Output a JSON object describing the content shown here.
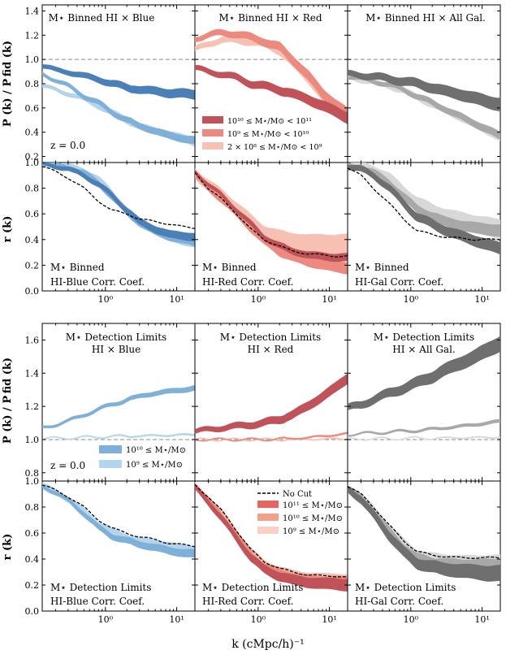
{
  "figure": {
    "xlabel": "k (cMpc/h)⁻¹",
    "ylabel_power": "P (k) / P fid (k)",
    "ylabel_corr": "r (k)",
    "xticks": [
      "10⁰",
      "10¹"
    ]
  },
  "colors": {
    "blue_dark": "#4a7fb8",
    "blue_mid": "#7eb0d8",
    "blue_light": "#b5d3ea",
    "red_dark": "#c0535a",
    "red_mid": "#ec8a7f",
    "red_light": "#f6c1b2",
    "gray_dark": "#6f6f6f",
    "gray_mid": "#a8a8a8",
    "gray_light": "#d8d8d8",
    "nocut": "#000000",
    "hline": "#888888"
  },
  "panels": {
    "r0c0": {
      "title": "M⋆ Binned HI × Blue",
      "note": "z = 0.0"
    },
    "r0c1": {
      "title": "M⋆ Binned HI × Red"
    },
    "r0c2": {
      "title": "M⋆ Binned HI × All Gal."
    },
    "r1c0": {
      "cap1": "M⋆ Binned",
      "cap2": "HI-Blue Corr. Coef."
    },
    "r1c1": {
      "cap1": "M⋆ Binned",
      "cap2": "HI-Red Corr. Coef."
    },
    "r1c2": {
      "cap1": "M⋆ Binned",
      "cap2": "HI-Gal Corr. Coef."
    },
    "r2c0": {
      "title1": "M⋆ Detection Limits",
      "title2": "HI × Blue",
      "note": "z = 0.0"
    },
    "r2c1": {
      "title1": "M⋆ Detection Limits",
      "title2": "HI × Red"
    },
    "r2c2": {
      "title1": "M⋆ Detection Limits",
      "title2": "HI × All Gal."
    },
    "r3c0": {
      "cap1": "M⋆ Detection Limits",
      "cap2": "HI-Blue Corr. Coef."
    },
    "r3c1": {
      "cap1": "M⋆ Detection Limits",
      "cap2": "HI-Red Corr. Coef."
    },
    "r3c2": {
      "cap1": "M⋆ Detection Limits",
      "cap2": "HI-Gal Corr. Coef."
    }
  },
  "legends": {
    "binned_red": [
      "10¹⁰ ≤ M⋆/M⊙ < 10¹¹",
      "10⁹ ≤ M⋆/M⊙ < 10¹⁰",
      "2 × 10⁸ ≤ M⋆/M⊙ < 10⁹"
    ],
    "det_blue": [
      "10¹⁰ ≤ M⋆/M⊙",
      "10⁹ ≤ M⋆/M⊙"
    ],
    "det_red": [
      "No Cut",
      "10¹¹ ≤ M⋆/M⊙",
      "10¹⁰ ≤ M⋆/M⊙",
      "10⁹ ≤ M⋆/M⊙"
    ]
  },
  "chart_data": [
    {
      "type": "line",
      "title": "M⋆ Binned (top block, rows: P(k)/P_fid(k) and r(k); columns: HI × Blue, HI × Red, HI × All Gal.)",
      "x_scale": "log",
      "xlim": [
        0.13,
        18
      ],
      "ylim_power": [
        0.15,
        1.45
      ],
      "yticks_power": [
        0.2,
        0.4,
        0.6,
        0.8,
        1.0,
        1.2,
        1.4
      ],
      "ylim_corr": [
        0.0,
        1.0
      ],
      "yticks_corr": [
        0.0,
        0.2,
        0.4,
        0.6,
        0.8,
        1.0
      ],
      "x": [
        0.13,
        0.2,
        0.3,
        0.5,
        0.8,
        1.2,
        2,
        3,
        5,
        8,
        12,
        18
      ],
      "power": {
        "blue": [
          {
            "name": "10¹⁰ ≤ M⋆/M⊙ < 10¹¹",
            "shade": "dark",
            "values": [
              0.95,
              0.91,
              0.9,
              0.86,
              0.84,
              0.8,
              0.77,
              0.75,
              0.74,
              0.72,
              0.72,
              0.71
            ],
            "band": 0.025
          },
          {
            "name": "10⁹ ≤ M⋆/M⊙ < 10¹⁰",
            "shade": "mid",
            "values": [
              0.88,
              0.83,
              0.78,
              0.7,
              0.64,
              0.57,
              0.5,
              0.45,
              0.41,
              0.37,
              0.35,
              0.33
            ],
            "band": 0.02
          },
          {
            "name": "2 × 10⁸ ≤ M⋆/M⊙ < 10⁹",
            "shade": "light",
            "values": [
              0.78,
              0.75,
              0.72,
              0.67,
              0.62,
              0.56,
              0.5,
              0.45,
              0.41,
              0.38,
              0.35,
              0.32
            ],
            "band": 0.02
          }
        ],
        "red": [
          {
            "name": "10¹⁰ ≤ M⋆/M⊙ < 10¹¹",
            "shade": "dark",
            "values": [
              0.93,
              0.9,
              0.88,
              0.85,
              0.8,
              0.78,
              0.75,
              0.72,
              0.67,
              0.62,
              0.57,
              0.52
            ],
            "band": 0.03
          },
          {
            "name": "10⁹ ≤ M⋆/M⊙ < 10¹⁰",
            "shade": "mid",
            "values": [
              1.17,
              1.2,
              1.22,
              1.21,
              1.18,
              1.15,
              1.1,
              1.0,
              0.87,
              0.72,
              0.63,
              0.55
            ],
            "band": 0.03
          },
          {
            "name": "2 × 10⁸ ≤ M⋆/M⊙ < 10⁹",
            "shade": "light",
            "values": [
              1.08,
              1.13,
              1.16,
              1.16,
              1.15,
              1.13,
              1.08,
              0.98,
              0.85,
              0.7,
              0.62,
              0.55
            ],
            "band": 0.03
          }
        ],
        "all": [
          {
            "name": "10¹⁰ ≤ M⋆/M⊙ < 10¹¹",
            "shade": "dark",
            "values": [
              0.88,
              0.87,
              0.86,
              0.84,
              0.82,
              0.8,
              0.77,
              0.74,
              0.71,
              0.68,
              0.65,
              0.63
            ],
            "band": 0.035
          },
          {
            "name": "10⁹ ≤ M⋆/M⊙ < 10¹⁰",
            "shade": "mid",
            "values": [
              0.86,
              0.84,
              0.82,
              0.79,
              0.75,
              0.7,
              0.64,
              0.59,
              0.53,
              0.47,
              0.42,
              0.37
            ],
            "band": 0.02
          },
          {
            "name": "2 × 10⁸ ≤ M⋆/M⊙ < 10⁹",
            "shade": "light",
            "values": [
              0.85,
              0.83,
              0.81,
              0.78,
              0.74,
              0.69,
              0.63,
              0.58,
              0.52,
              0.46,
              0.41,
              0.36
            ],
            "band": 0.02
          }
        ]
      },
      "corr": {
        "blue": {
          "nocut": [
            0.97,
            0.93,
            0.88,
            0.8,
            0.7,
            0.63,
            0.6,
            0.56,
            0.54,
            0.52,
            0.5,
            0.49
          ],
          "series": [
            {
              "shade": "dark",
              "values": [
                0.99,
                0.97,
                0.95,
                0.9,
                0.83,
                0.75,
                0.63,
                0.54,
                0.48,
                0.44,
                0.43,
                0.42
              ],
              "band": 0.02
            },
            {
              "shade": "mid",
              "values": [
                0.99,
                0.98,
                0.96,
                0.92,
                0.84,
                0.74,
                0.61,
                0.53,
                0.46,
                0.42,
                0.4,
                0.38
              ],
              "band": 0.02
            },
            {
              "shade": "light",
              "values": [
                0.99,
                0.98,
                0.97,
                0.94,
                0.87,
                0.77,
                0.63,
                0.54,
                0.47,
                0.42,
                0.39,
                0.37
              ],
              "band": 0.02
            }
          ]
        },
        "red": {
          "nocut": [
            0.92,
            0.8,
            0.72,
            0.6,
            0.48,
            0.4,
            0.35,
            0.31,
            0.29,
            0.28,
            0.27,
            0.27
          ],
          "series": [
            {
              "shade": "dark",
              "values": [
                0.93,
                0.83,
                0.75,
                0.63,
                0.52,
                0.42,
                0.35,
                0.31,
                0.28,
                0.27,
                0.26,
                0.26
              ],
              "band": 0.02
            },
            {
              "shade": "mid",
              "values": [
                0.9,
                0.8,
                0.72,
                0.6,
                0.49,
                0.39,
                0.31,
                0.27,
                0.23,
                0.21,
                0.19,
                0.18
              ],
              "band": 0.03
            },
            {
              "shade": "light",
              "values": [
                0.92,
                0.82,
                0.75,
                0.64,
                0.53,
                0.45,
                0.4,
                0.38,
                0.36,
                0.36,
                0.35,
                0.35
              ],
              "band": 0.06
            }
          ]
        },
        "all": {
          "nocut": [
            0.96,
            0.9,
            0.8,
            0.68,
            0.56,
            0.47,
            0.44,
            0.42,
            0.41,
            0.4,
            0.4,
            0.4
          ],
          "series": [
            {
              "shade": "dark",
              "values": [
                0.97,
                0.95,
                0.9,
                0.8,
                0.68,
                0.58,
                0.52,
                0.47,
                0.43,
                0.39,
                0.36,
                0.33
              ],
              "band": 0.03
            },
            {
              "shade": "mid",
              "values": [
                0.97,
                0.96,
                0.92,
                0.84,
                0.73,
                0.64,
                0.58,
                0.54,
                0.51,
                0.49,
                0.48,
                0.47
              ],
              "band": 0.03
            },
            {
              "shade": "light",
              "values": [
                0.98,
                0.97,
                0.94,
                0.87,
                0.77,
                0.68,
                0.62,
                0.58,
                0.55,
                0.52,
                0.5,
                0.48
              ],
              "band": 0.05
            }
          ]
        }
      }
    },
    {
      "type": "line",
      "title": "M⋆ Detection Limits (bottom block, rows: P(k)/P_fid(k) and r(k); columns: HI × Blue, HI × Red, HI × All Gal.)",
      "x_scale": "log",
      "xlim": [
        0.13,
        18
      ],
      "ylim_power": [
        0.75,
        1.7
      ],
      "yticks_power": [
        0.8,
        1.0,
        1.2,
        1.4,
        1.6
      ],
      "ylim_corr": [
        0.0,
        1.0
      ],
      "yticks_corr": [
        0.0,
        0.2,
        0.4,
        0.6,
        0.8,
        1.0
      ],
      "x": [
        0.13,
        0.2,
        0.3,
        0.5,
        0.8,
        1.2,
        2,
        3,
        5,
        8,
        12,
        18
      ],
      "power": {
        "blue": [
          {
            "name": "10¹⁰ ≤ M⋆/M⊙",
            "shade": "mid",
            "values": [
              1.07,
              1.09,
              1.11,
              1.15,
              1.18,
              1.21,
              1.24,
              1.26,
              1.28,
              1.29,
              1.3,
              1.31
            ],
            "band": 0.01
          },
          {
            "name": "10⁹ ≤ M⋆/M⊙",
            "shade": "light",
            "values": [
              1.005,
              1.008,
              1.01,
              1.013,
              1.016,
              1.018,
              1.02,
              1.022,
              1.024,
              1.026,
              1.028,
              1.03
            ],
            "band": 0.003
          }
        ],
        "red": [
          {
            "name": "10¹¹ ≤ M⋆/M⊙",
            "shade": "dark",
            "values": [
              1.05,
              1.06,
              1.07,
              1.08,
              1.09,
              1.1,
              1.12,
              1.15,
              1.2,
              1.26,
              1.31,
              1.37
            ],
            "band": 0.02
          },
          {
            "name": "10¹⁰ ≤ M⋆/M⊙",
            "shade": "mid",
            "values": [
              1.0,
              1.0,
              1.0,
              1.0,
              1.0,
              1.001,
              1.003,
              1.006,
              1.012,
              1.02,
              1.028,
              1.036
            ],
            "band": 0.003
          },
          {
            "name": "10⁹ ≤ M⋆/M⊙",
            "shade": "light",
            "values": [
              1.0,
              1.0,
              1.0,
              1.0,
              1.0,
              1.0,
              1.0,
              1.001,
              1.002,
              1.003,
              1.004,
              1.005
            ],
            "band": 0.002
          }
        ],
        "all": [
          {
            "name": "10¹¹ ≤ M⋆/M⊙",
            "shade": "dark",
            "values": [
              1.19,
              1.21,
              1.24,
              1.28,
              1.31,
              1.34,
              1.38,
              1.42,
              1.46,
              1.5,
              1.54,
              1.58
            ],
            "band": 0.03
          },
          {
            "name": "10¹⁰ ≤ M⋆/M⊙",
            "shade": "mid",
            "values": [
              1.03,
              1.035,
              1.04,
              1.045,
              1.05,
              1.055,
              1.06,
              1.07,
              1.08,
              1.09,
              1.1,
              1.11
            ],
            "band": 0.006
          },
          {
            "name": "10⁹ ≤ M⋆/M⊙",
            "shade": "light",
            "values": [
              1.003,
              1.004,
              1.005,
              1.006,
              1.007,
              1.008,
              1.009,
              1.01,
              1.011,
              1.012,
              1.013,
              1.014
            ],
            "band": 0.002
          }
        ]
      },
      "corr": {
        "blue": {
          "nocut": [
            0.97,
            0.93,
            0.88,
            0.8,
            0.7,
            0.64,
            0.6,
            0.57,
            0.55,
            0.52,
            0.51,
            0.5
          ],
          "series": [
            {
              "shade": "mid",
              "values": [
                0.96,
                0.91,
                0.85,
                0.75,
                0.64,
                0.58,
                0.54,
                0.51,
                0.49,
                0.46,
                0.45,
                0.44
              ],
              "band": 0.02
            },
            {
              "shade": "light",
              "values": [
                0.97,
                0.92,
                0.86,
                0.77,
                0.67,
                0.61,
                0.57,
                0.54,
                0.52,
                0.5,
                0.48,
                0.47
              ],
              "band": 0.02
            }
          ]
        },
        "red": {
          "nocut": [
            0.97,
            0.88,
            0.78,
            0.62,
            0.47,
            0.38,
            0.33,
            0.3,
            0.28,
            0.27,
            0.27,
            0.26
          ],
          "series": [
            {
              "shade": "dark",
              "values": [
                0.95,
                0.84,
                0.72,
                0.56,
                0.41,
                0.32,
                0.27,
                0.24,
                0.22,
                0.21,
                0.21,
                0.2
              ],
              "band": 0.03
            },
            {
              "shade": "mid",
              "values": [
                0.96,
                0.86,
                0.75,
                0.59,
                0.44,
                0.35,
                0.3,
                0.27,
                0.25,
                0.24,
                0.24,
                0.23
              ],
              "band": 0.02
            },
            {
              "shade": "light",
              "values": [
                0.97,
                0.87,
                0.77,
                0.61,
                0.46,
                0.37,
                0.32,
                0.29,
                0.27,
                0.26,
                0.26,
                0.25
              ],
              "band": 0.02
            }
          ]
        },
        "all": {
          "nocut": [
            0.96,
            0.9,
            0.8,
            0.66,
            0.54,
            0.46,
            0.43,
            0.42,
            0.41,
            0.41,
            0.41,
            0.41
          ],
          "series": [
            {
              "shade": "dark",
              "values": [
                0.94,
                0.86,
                0.74,
                0.58,
                0.45,
                0.37,
                0.34,
                0.32,
                0.31,
                0.3,
                0.29,
                0.29
              ],
              "band": 0.04
            },
            {
              "shade": "mid",
              "values": [
                0.95,
                0.88,
                0.77,
                0.62,
                0.5,
                0.42,
                0.39,
                0.38,
                0.37,
                0.37,
                0.37,
                0.37
              ],
              "band": 0.02
            },
            {
              "shade": "light",
              "values": [
                0.96,
                0.89,
                0.79,
                0.65,
                0.53,
                0.45,
                0.42,
                0.41,
                0.4,
                0.4,
                0.4,
                0.4
              ],
              "band": 0.02
            }
          ]
        }
      }
    }
  ]
}
